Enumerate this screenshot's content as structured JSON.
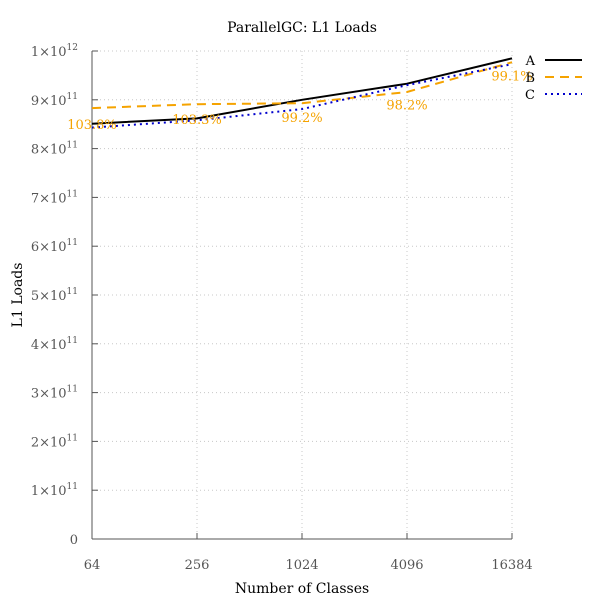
{
  "chart_data": {
    "type": "line",
    "title": "ParallelGC: L1 Loads",
    "xlabel": "Number of Classes",
    "ylabel": "L1 Loads",
    "x_scale": "log2",
    "x": [
      64,
      256,
      1024,
      4096,
      16384
    ],
    "x_tick_labels": [
      "64",
      "256",
      "1024",
      "4096",
      "16384"
    ],
    "ylim": [
      0,
      1000000000000
    ],
    "y_ticks": [
      {
        "value": 0,
        "mantissa": "0",
        "exp": ""
      },
      {
        "value": 100000000000,
        "mantissa": "1×10",
        "exp": "11"
      },
      {
        "value": 200000000000,
        "mantissa": "2×10",
        "exp": "11"
      },
      {
        "value": 300000000000,
        "mantissa": "3×10",
        "exp": "11"
      },
      {
        "value": 400000000000,
        "mantissa": "4×10",
        "exp": "11"
      },
      {
        "value": 500000000000,
        "mantissa": "5×10",
        "exp": "11"
      },
      {
        "value": 600000000000,
        "mantissa": "6×10",
        "exp": "11"
      },
      {
        "value": 700000000000,
        "mantissa": "7×10",
        "exp": "11"
      },
      {
        "value": 800000000000,
        "mantissa": "8×10",
        "exp": "11"
      },
      {
        "value": 900000000000,
        "mantissa": "9×10",
        "exp": "11"
      },
      {
        "value": 1000000000000,
        "mantissa": "1×10",
        "exp": "12"
      }
    ],
    "grid": true,
    "legend_position": "top-right",
    "series": [
      {
        "name": "A",
        "color": "#000000",
        "dash": "solid",
        "values": [
          851000000000,
          862000000000,
          900000000000,
          933000000000,
          985000000000
        ]
      },
      {
        "name": "B",
        "color": "#f5a300",
        "dash": "dashed",
        "values": [
          883000000000,
          891000000000,
          893000000000,
          916000000000,
          977000000000
        ]
      },
      {
        "name": "C",
        "color": "#0000cc",
        "dash": "dotted",
        "values": [
          843000000000,
          858000000000,
          881000000000,
          930000000000,
          973000000000
        ]
      }
    ],
    "annotations": [
      {
        "text": "103.8%",
        "x": 64,
        "y": 840000000000
      },
      {
        "text": "103.3%",
        "x": 256,
        "y": 850000000000
      },
      {
        "text": "99.2%",
        "x": 1024,
        "y": 855000000000
      },
      {
        "text": "98.2%",
        "x": 4096,
        "y": 880000000000
      },
      {
        "text": "99.1%",
        "x": 16384,
        "y": 940000000000
      }
    ]
  }
}
